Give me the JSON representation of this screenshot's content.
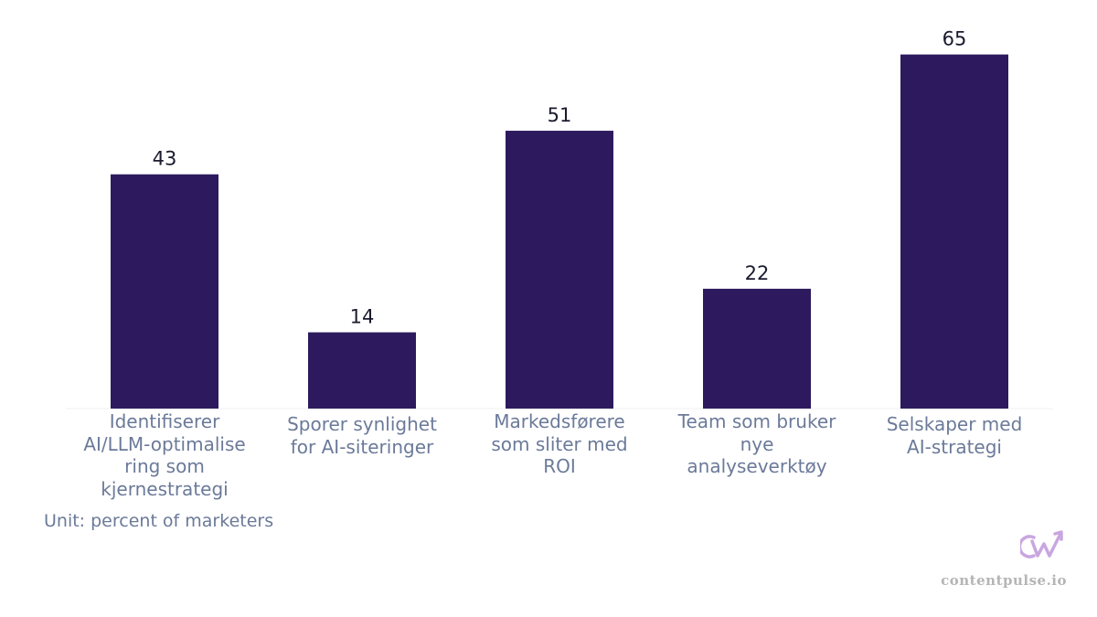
{
  "chart_data": {
    "type": "bar",
    "categories": [
      "Identifiserer AI/LLM-optimalisering som kjernestrategi",
      "Sporer synlighet for AI-siteringer",
      "Markedsførere som sliter med ROI",
      "Team som bruker nye analyseverktøy",
      "Selskaper med AI-strategi"
    ],
    "category_lines": [
      [
        "Identifiserer",
        "AI/LLM-optimalise",
        "ring som",
        "kjernestrategi"
      ],
      [
        "Sporer synlighet",
        "for AI-siteringer"
      ],
      [
        "Markedsførere",
        "som sliter med",
        "ROI"
      ],
      [
        "Team som bruker",
        "nye",
        "analyseverktøy"
      ],
      [
        "Selskaper med",
        "AI-strategi"
      ]
    ],
    "values": [
      43,
      14,
      51,
      22,
      65
    ],
    "ylim": [
      0,
      70
    ],
    "bar_color": "#2d1a5e",
    "grid": false,
    "note": "Unit: percent of marketers"
  },
  "brand": {
    "domain": "contentpulse.io",
    "logo_icon": "cw-arrow-logo-icon",
    "logo_color": "#c9a6e0"
  }
}
